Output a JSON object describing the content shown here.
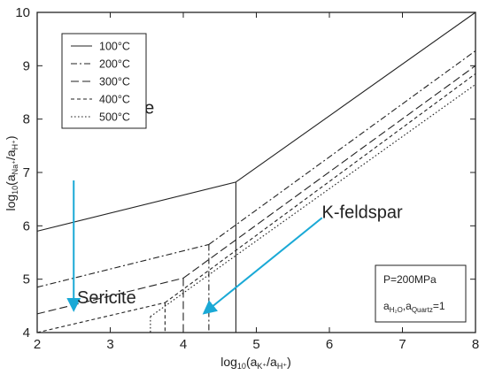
{
  "chart_data": {
    "type": "line",
    "xlabel_parts": [
      "log",
      "10",
      "(a",
      "K⁺",
      "/a",
      "H⁺",
      ")"
    ],
    "ylabel_parts": [
      "log",
      "10",
      "(a",
      "Na⁺",
      "/a",
      "H⁺",
      ")"
    ],
    "xlim": [
      2,
      8
    ],
    "ylim": [
      4,
      10
    ],
    "x_ticks": [
      "2",
      "3",
      "4",
      "5",
      "6",
      "7",
      "8"
    ],
    "y_ticks": [
      "4",
      "5",
      "6",
      "7",
      "8",
      "9",
      "10"
    ],
    "x_tick_values": [
      2,
      3,
      4,
      5,
      6,
      7,
      8
    ],
    "y_tick_values": [
      4,
      5,
      6,
      7,
      8,
      9,
      10
    ],
    "regions": {
      "albite": {
        "label": "Albite",
        "x": 3.3,
        "y": 8.1
      },
      "sericite": {
        "label": "Sericite",
        "x": 2.95,
        "y": 4.55
      },
      "kfeldspar": {
        "label": "K-feldspar",
        "x": 6.45,
        "y": 6.15
      }
    },
    "legend": {
      "position": "top-left",
      "entries": [
        {
          "label": "100°C",
          "dash": "solid"
        },
        {
          "label": "200°C",
          "dash": "dashdot"
        },
        {
          "label": "300°C",
          "dash": "longdash"
        },
        {
          "label": "400°C",
          "dash": "shortdash"
        },
        {
          "label": "500°C",
          "dash": "dotted"
        }
      ]
    },
    "note": {
      "line1": "P=200MPa",
      "line2_parts": [
        "a",
        "H₂O",
        ",a",
        "Quartz",
        "=1"
      ]
    },
    "series": [
      {
        "temp": "100°C",
        "lines": [
          [
            [
              2.0,
              5.9
            ],
            [
              4.72,
              6.82
            ]
          ],
          [
            [
              4.72,
              6.82
            ],
            [
              8.0,
              10.0
            ]
          ],
          [
            [
              4.72,
              6.82
            ],
            [
              4.72,
              4.0
            ]
          ]
        ]
      },
      {
        "temp": "200°C",
        "lines": [
          [
            [
              2.0,
              4.85
            ],
            [
              4.35,
              5.65
            ]
          ],
          [
            [
              4.35,
              5.65
            ],
            [
              8.0,
              9.28
            ]
          ],
          [
            [
              4.35,
              5.65
            ],
            [
              4.35,
              4.0
            ]
          ]
        ]
      },
      {
        "temp": "300°C",
        "lines": [
          [
            [
              2.0,
              4.35
            ],
            [
              4.0,
              5.02
            ]
          ],
          [
            [
              4.0,
              5.02
            ],
            [
              8.0,
              9.0
            ]
          ],
          [
            [
              4.0,
              5.02
            ],
            [
              4.0,
              4.0
            ]
          ]
        ]
      },
      {
        "temp": "400°C",
        "lines": [
          [
            [
              2.0,
              4.0
            ],
            [
              3.75,
              4.56
            ]
          ],
          [
            [
              3.75,
              4.56
            ],
            [
              8.0,
              8.85
            ]
          ],
          [
            [
              3.75,
              4.56
            ],
            [
              3.75,
              4.0
            ]
          ]
        ]
      },
      {
        "temp": "500°C",
        "lines": [
          [
            [
              3.55,
              4.3
            ],
            [
              8.0,
              8.65
            ]
          ],
          [
            [
              3.55,
              4.3
            ],
            [
              3.55,
              4.0
            ]
          ]
        ]
      }
    ],
    "arrows": [
      {
        "from": [
          2.5,
          6.85
        ],
        "to": [
          2.5,
          4.45
        ],
        "color": "#1aa9d6"
      },
      {
        "from": [
          5.9,
          6.15
        ],
        "to": [
          4.3,
          4.38
        ],
        "color": "#1aa9d6"
      }
    ]
  }
}
